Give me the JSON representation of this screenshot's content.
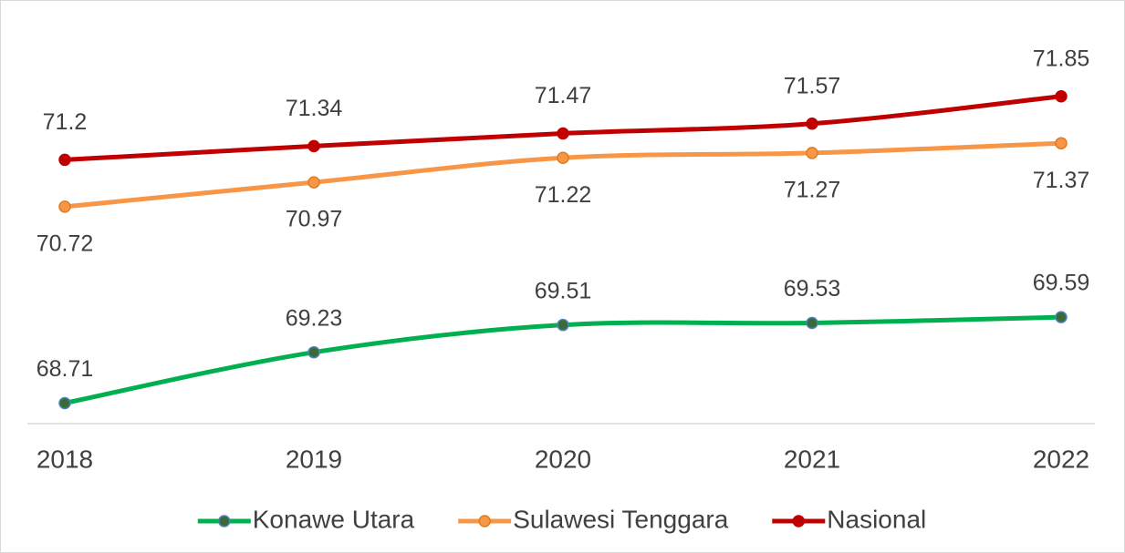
{
  "chart_data": {
    "type": "line",
    "categories": [
      "2018",
      "2019",
      "2020",
      "2021",
      "2022"
    ],
    "series": [
      {
        "name": "Konawe Utara",
        "color": "#00b050",
        "values": [
          68.71,
          69.23,
          69.51,
          69.53,
          69.59
        ]
      },
      {
        "name": "Sulawesi Tenggara",
        "color": "#f79646",
        "values": [
          70.72,
          70.97,
          71.22,
          71.27,
          71.37
        ]
      },
      {
        "name": "Nasional",
        "color": "#c00000",
        "values": [
          71.2,
          71.34,
          71.47,
          71.57,
          71.85
        ]
      }
    ],
    "ylim": [
      68.5,
      72.5
    ]
  }
}
